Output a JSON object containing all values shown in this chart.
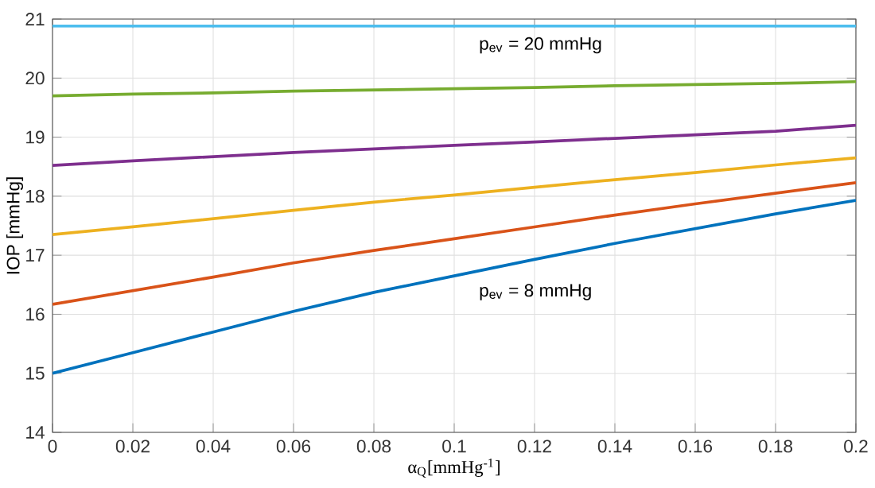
{
  "chart_data": {
    "type": "line",
    "x": [
      0,
      0.02,
      0.04,
      0.06,
      0.08,
      0.1,
      0.12,
      0.14,
      0.16,
      0.18,
      0.2
    ],
    "series": [
      {
        "color": "#0072bd",
        "values": [
          15.0,
          15.35,
          15.7,
          16.05,
          16.37,
          16.65,
          16.93,
          17.2,
          17.45,
          17.7,
          17.93
        ]
      },
      {
        "color": "#d95319",
        "values": [
          16.17,
          16.4,
          16.63,
          16.87,
          17.08,
          17.28,
          17.48,
          17.68,
          17.87,
          18.05,
          18.23
        ]
      },
      {
        "color": "#edb120",
        "values": [
          17.35,
          17.48,
          17.62,
          17.76,
          17.9,
          18.02,
          18.15,
          18.28,
          18.4,
          18.53,
          18.65
        ]
      },
      {
        "color": "#7e2f8e",
        "values": [
          18.52,
          18.6,
          18.67,
          18.74,
          18.8,
          18.86,
          18.92,
          18.98,
          19.04,
          19.1,
          19.2
        ]
      },
      {
        "color": "#77ac30",
        "values": [
          19.7,
          19.73,
          19.75,
          19.78,
          19.8,
          19.82,
          19.84,
          19.87,
          19.89,
          19.91,
          19.94
        ]
      },
      {
        "color": "#4dbeee",
        "values": [
          20.88,
          20.88,
          20.88,
          20.88,
          20.88,
          20.88,
          20.88,
          20.88,
          20.88,
          20.88,
          20.88
        ]
      }
    ],
    "xlabel": "α$_{Q}$[mmHg$^{-1}$]",
    "ylabel": "IOP [mmHg]",
    "annotations": [
      {
        "text": "p$_{ev}$ = 20 mmHg",
        "x": 0.105,
        "y": 20.88
      },
      {
        "text": "p$_{ev}$ = 8 mmHg",
        "x": 0.105,
        "y": 16.7
      }
    ],
    "xlim": [
      0,
      0.2
    ],
    "ylim": [
      14,
      21
    ],
    "xticks": [
      0,
      0.02,
      0.04,
      0.06,
      0.08,
      0.1,
      0.12,
      0.14,
      0.16,
      0.18,
      0.2
    ],
    "yticks": [
      14,
      15,
      16,
      17,
      18,
      19,
      20,
      21
    ],
    "grid": true,
    "marker": "none",
    "line_style": "solid"
  }
}
